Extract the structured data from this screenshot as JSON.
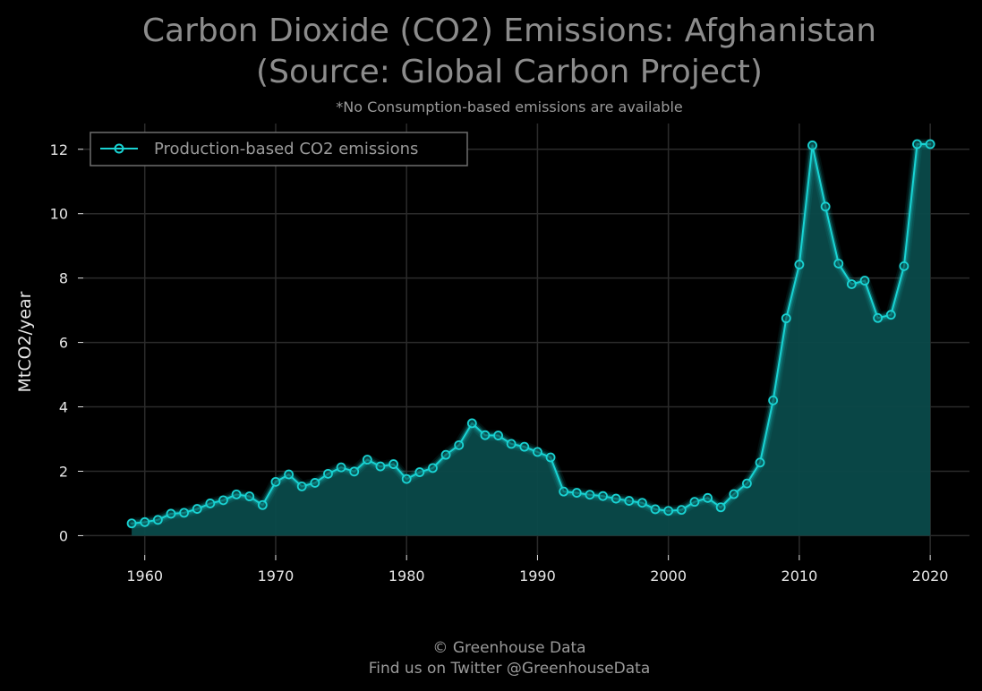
{
  "title_line1": "Carbon Dioxide (CO2) Emissions: Afghanistan",
  "title_line2": "(Source: Global Carbon Project)",
  "subtitle": "*No Consumption-based emissions are available",
  "footer_line1": "© Greenhouse Data",
  "footer_line2": "Find us on Twitter @GreenhouseData",
  "colors": {
    "background": "#000000",
    "series": "#19d3d3",
    "fill": "#0a4a4a",
    "grid": "#2b2b2b"
  },
  "chart_data": {
    "type": "area",
    "ylabel": "MtCO2/year",
    "xlabel": "",
    "xlim": [
      1955.3,
      2023
    ],
    "ylim": [
      -0.6,
      12.8
    ],
    "xticks": [
      1960,
      1970,
      1980,
      1990,
      2000,
      2010,
      2020
    ],
    "yticks": [
      0,
      2,
      4,
      6,
      8,
      10,
      12
    ],
    "grid": true,
    "legend": {
      "position": "top-left",
      "entries": [
        "Production-based CO2 emissions"
      ]
    },
    "x": [
      1959,
      1960,
      1961,
      1962,
      1963,
      1964,
      1965,
      1966,
      1967,
      1968,
      1969,
      1970,
      1971,
      1972,
      1973,
      1974,
      1975,
      1976,
      1977,
      1978,
      1979,
      1980,
      1981,
      1982,
      1983,
      1984,
      1985,
      1986,
      1987,
      1988,
      1989,
      1990,
      1991,
      1992,
      1993,
      1994,
      1995,
      1996,
      1997,
      1998,
      1999,
      2000,
      2001,
      2002,
      2003,
      2004,
      2005,
      2006,
      2007,
      2008,
      2009,
      2010,
      2011,
      2012,
      2013,
      2014,
      2015,
      2016,
      2017,
      2018,
      2019,
      2020
    ],
    "series": [
      {
        "name": "Production-based CO2 emissions",
        "values": [
          0.38,
          0.42,
          0.49,
          0.68,
          0.71,
          0.83,
          1.0,
          1.1,
          1.28,
          1.22,
          0.95,
          1.67,
          1.9,
          1.53,
          1.64,
          1.92,
          2.12,
          1.99,
          2.36,
          2.15,
          2.22,
          1.76,
          1.97,
          2.1,
          2.51,
          2.81,
          3.49,
          3.12,
          3.11,
          2.85,
          2.76,
          2.6,
          2.43,
          1.37,
          1.33,
          1.27,
          1.23,
          1.15,
          1.08,
          1.02,
          0.82,
          0.77,
          0.8,
          1.05,
          1.17,
          0.88,
          1.29,
          1.62,
          2.27,
          4.2,
          6.75,
          8.42,
          12.12,
          10.22,
          8.45,
          7.81,
          7.92,
          6.76,
          6.86,
          8.37,
          12.16,
          12.16
        ]
      }
    ]
  }
}
